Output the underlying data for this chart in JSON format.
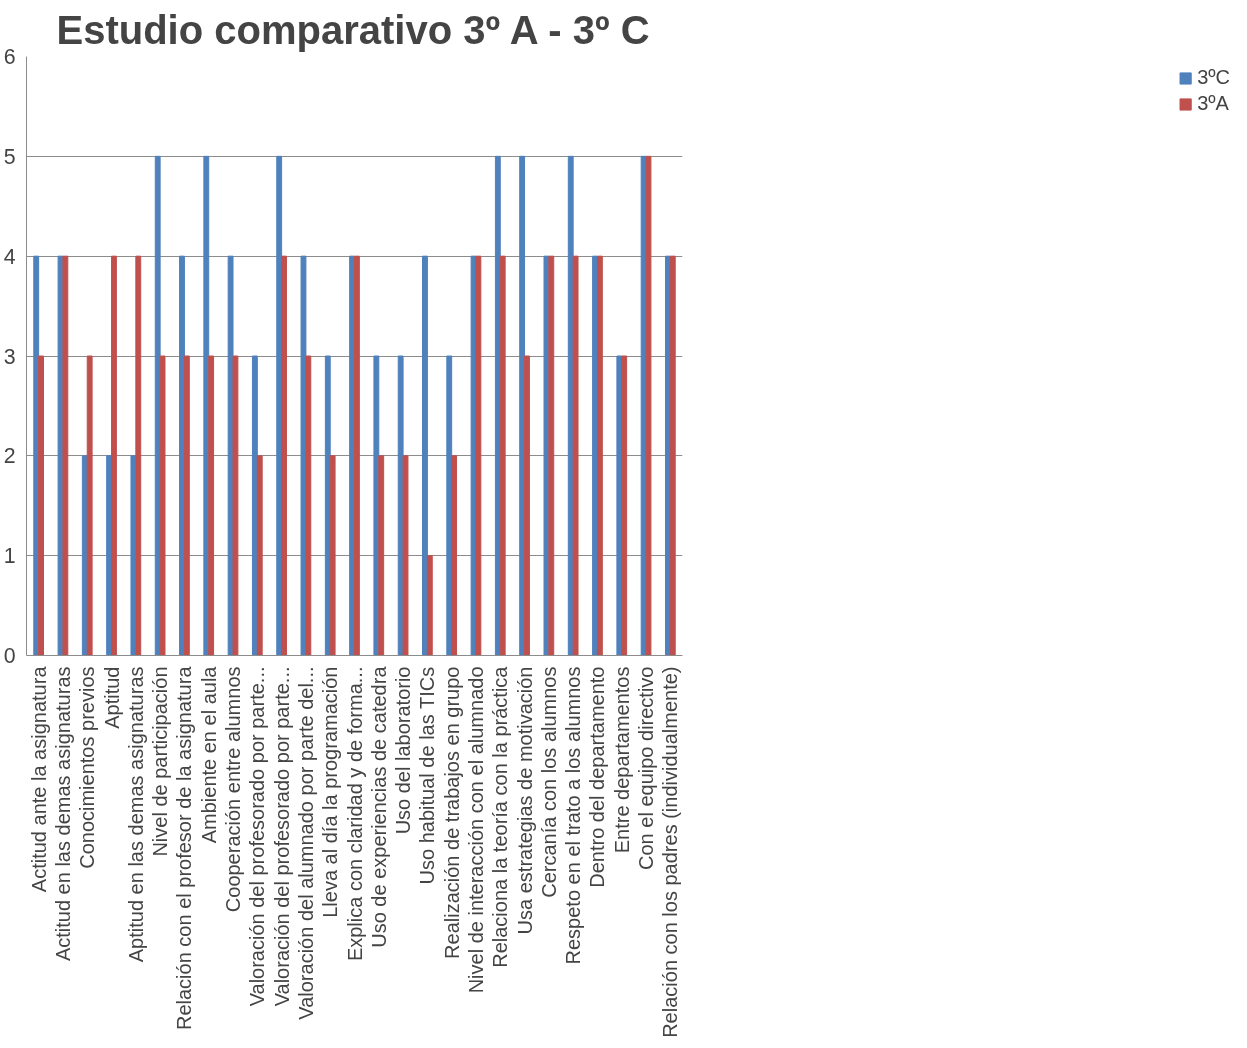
{
  "chart_data": {
    "type": "bar",
    "title": "Estudio comparativo 3º A - 3º C",
    "categories": [
      "Actitud ante la asignatura",
      "Actitud en las demas asignaturas",
      "Conocimientos previos",
      "Aptitud",
      "Aptitud en las demas asignaturas",
      "Nivel de participación",
      "Relación con el profesor de la asignatura",
      "Ambiente en el aula",
      "Cooperación entre alumnos",
      "Valoración del profesorado por parte...",
      "Valoración del profesorado por parte...",
      "Valoración del alumnado por parte del...",
      "Lleva al día la programación",
      "Explica con claridad y de forma...",
      "Uso de experiencias de catedra",
      "Uso del laboratorio",
      "Uso habitual de las TICs",
      "Realización de trabajos en grupo",
      "Nivel de interacción con el alumnado",
      "Relaciona la teoría con la práctica",
      "Usa estrategias de motivación",
      "Cercanía con los alumnos",
      "Respeto en el trato a los alumnos",
      "Dentro del departamento",
      "Entre departamentos",
      "Con el equipo directivo",
      "Relación con los padres (individualmente)"
    ],
    "series": [
      {
        "name": "3ºC",
        "color": "#4f81bd",
        "values": [
          4,
          4,
          2,
          2,
          2,
          5,
          4,
          5,
          4,
          3,
          5,
          4,
          3,
          4,
          3,
          3,
          4,
          3,
          4,
          5,
          5,
          4,
          5,
          4,
          3,
          5,
          4
        ]
      },
      {
        "name": "3ºA",
        "color": "#c0504d",
        "values": [
          3,
          4,
          3,
          4,
          4,
          3,
          3,
          3,
          3,
          2,
          4,
          3,
          2,
          4,
          2,
          2,
          1,
          2,
          4,
          4,
          3,
          4,
          4,
          4,
          3,
          5,
          4
        ]
      }
    ],
    "ylim": [
      0,
      6
    ],
    "yticks": [
      0,
      1,
      2,
      3,
      4,
      5,
      6
    ],
    "grid": "y",
    "legend": "right"
  }
}
